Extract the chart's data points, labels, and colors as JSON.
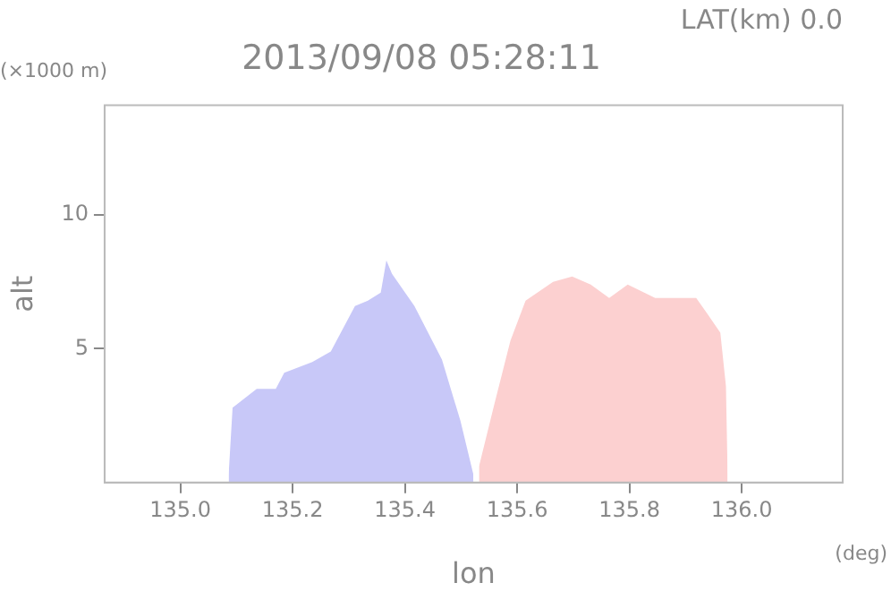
{
  "chart_data": {
    "type": "area",
    "title": "2013/09/08 05:28:11",
    "xlabel": "lon",
    "ylabel": "alt",
    "annotations": [
      "LAT(km) 0.0",
      "(×1000 m)",
      "(deg)"
    ],
    "xlim": [
      134.865,
      136.18
    ],
    "xticks": [
      {
        "value": 135.0,
        "label": "135.0"
      },
      {
        "value": 135.2,
        "label": "135.2"
      },
      {
        "value": 135.4,
        "label": "135.4"
      },
      {
        "value": 135.6,
        "label": "135.6"
      },
      {
        "value": 135.8,
        "label": "135.8"
      },
      {
        "value": 136.0,
        "label": "136.0"
      }
    ],
    "ylim": [
      0,
      14.1
    ],
    "yticks": [
      5,
      10
    ],
    "grid": false,
    "legend": false,
    "series": [
      {
        "color": "#c8c8f8",
        "x": [
          135.086,
          135.093,
          135.136,
          135.17,
          135.185,
          135.235,
          135.268,
          135.311,
          135.334,
          135.357,
          135.367,
          135.377,
          135.417,
          135.466,
          135.499,
          135.522
        ],
        "values": [
          0.3,
          2.8,
          3.5,
          3.5,
          4.1,
          4.5,
          4.9,
          6.6,
          6.8,
          7.1,
          8.3,
          7.8,
          6.6,
          4.6,
          2.3,
          0.3
        ]
      },
      {
        "color": "#fcd0d0",
        "x": [
          135.532,
          135.559,
          135.588,
          135.615,
          135.664,
          135.698,
          135.731,
          135.764,
          135.797,
          135.846,
          135.919,
          135.939,
          135.962,
          135.972,
          135.975
        ],
        "values": [
          0.6,
          2.9,
          5.3,
          6.8,
          7.5,
          7.7,
          7.4,
          6.9,
          7.4,
          6.9,
          6.9,
          6.3,
          5.6,
          3.6,
          0.3
        ]
      }
    ]
  }
}
